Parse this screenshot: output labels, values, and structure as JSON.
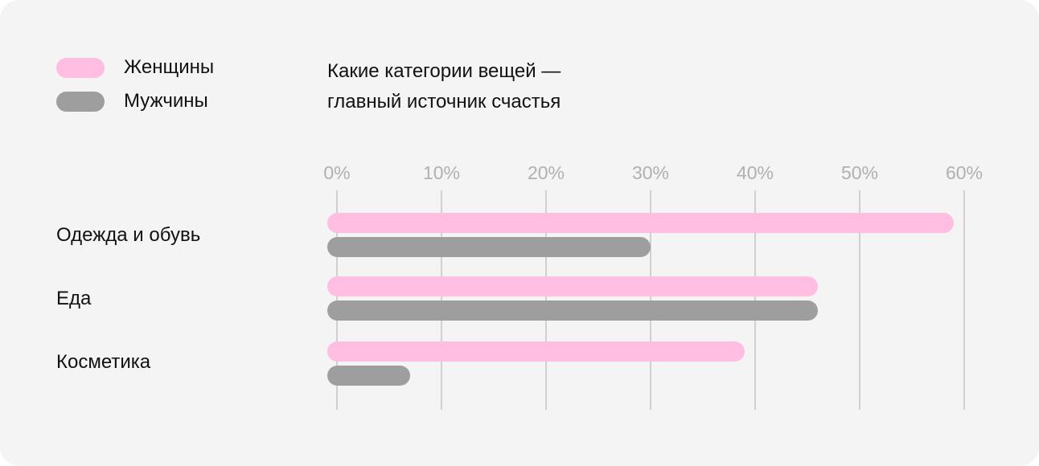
{
  "chart_data": {
    "type": "bar",
    "orientation": "horizontal",
    "title_lines": [
      "Какие категории вещей —",
      "главный источник счастья"
    ],
    "categories": [
      "Одежда и обувь",
      "Еда",
      "Косметика"
    ],
    "series": [
      {
        "name": "Женщины",
        "color": "#ffbde2",
        "values": [
          59,
          46,
          39
        ]
      },
      {
        "name": "Мужчины",
        "color": "#9e9e9e",
        "values": [
          30,
          46,
          7
        ]
      }
    ],
    "xticks": [
      0,
      10,
      20,
      30,
      40,
      50,
      60
    ],
    "xtick_labels": [
      "0%",
      "10%",
      "20%",
      "30%",
      "40%",
      "50%",
      "60%"
    ],
    "xlim": [
      0,
      60
    ],
    "grid": true,
    "legend_position": "top-left"
  }
}
